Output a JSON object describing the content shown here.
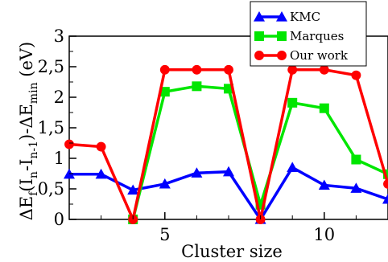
{
  "chart_data": {
    "type": "line",
    "title": "",
    "xlabel": "Cluster size",
    "ylabel_parts": {
      "main": "ΔE",
      "sub1": "f",
      "paren_open": "(I",
      "sub2": "n",
      "minus": "-I",
      "sub3": "n-1",
      "paren_close": ")-ΔE",
      "sub4": "min",
      "unit": " (eV)"
    },
    "xlim": [
      2,
      12
    ],
    "ylim": [
      0,
      3
    ],
    "x_ticks": [
      5,
      10
    ],
    "x_tick_labels": [
      "5",
      "10"
    ],
    "y_ticks": [
      0,
      0.5,
      1,
      1.5,
      2,
      2.5,
      3
    ],
    "y_tick_labels": [
      "0",
      "0,5",
      "1",
      "1,5",
      "2",
      "2,5",
      "3"
    ],
    "grid": false,
    "legend_position": "top-right",
    "series": [
      {
        "name": "KMC",
        "color": "#0000ff",
        "marker": "triangle",
        "x": [
          2,
          3,
          4,
          5,
          6,
          7,
          8,
          9,
          10,
          11,
          12
        ],
        "y": [
          0.74,
          0.74,
          0.48,
          0.58,
          0.76,
          0.78,
          0.0,
          0.85,
          0.56,
          0.51,
          0.33
        ]
      },
      {
        "name": "Marques",
        "color": "#00e600",
        "marker": "square",
        "x": [
          4,
          5,
          6,
          7,
          8,
          9,
          10,
          11,
          12
        ],
        "y": [
          0.0,
          2.09,
          2.18,
          2.14,
          0.24,
          1.91,
          1.82,
          0.98,
          0.74
        ]
      },
      {
        "name": "Our work",
        "color": "#ff0000",
        "marker": "circle",
        "x": [
          2,
          3,
          4,
          5,
          6,
          7,
          8,
          9,
          10,
          11,
          12
        ],
        "y": [
          1.23,
          1.19,
          0.0,
          2.45,
          2.45,
          2.45,
          0.0,
          2.45,
          2.45,
          2.36,
          0.58
        ]
      }
    ]
  }
}
